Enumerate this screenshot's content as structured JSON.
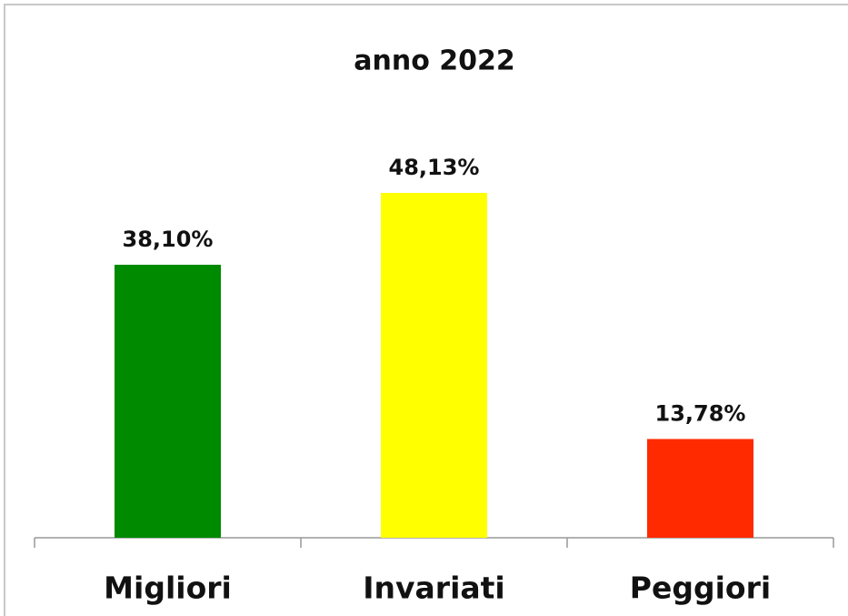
{
  "chart_data": {
    "type": "bar",
    "title": "anno 2022",
    "categories": [
      "Migliori",
      "Invariati",
      "Peggiori"
    ],
    "values": [
      38.1,
      48.13,
      13.78
    ],
    "value_labels": [
      "38,10%",
      "48,13%",
      "13,78%"
    ],
    "colors": [
      "#008a00",
      "#ffff00",
      "#ff2a00"
    ]
  }
}
